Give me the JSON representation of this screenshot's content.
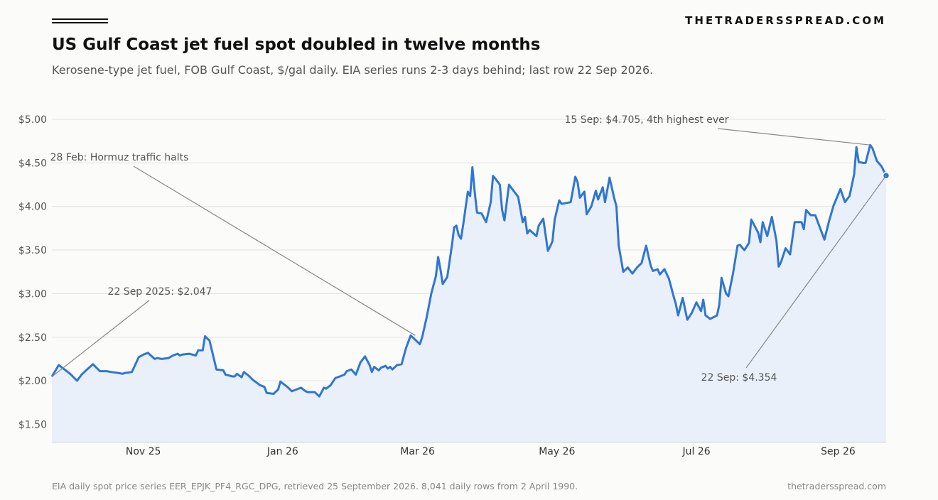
{
  "header": {
    "brand": "THETRADERSSPREAD.COM",
    "title": "US Gulf Coast jet fuel spot doubled in twelve months",
    "subtitle": "Kerosene-type jet fuel, FOB Gulf Coast, $/gal daily. EIA series runs 2-3 days behind; last row 22 Sep 2026."
  },
  "footer": {
    "source": "EIA daily spot price series EER_EPJK_PF4_RGC_DPG, retrieved 25 September 2026. 8,041 daily rows from 2 April 1990.",
    "site": "thetradersspread.com"
  },
  "colors": {
    "line": "#2f76d2",
    "fill": "#eaf0f9",
    "grid": "#e2e2e2",
    "leader": "#888888"
  },
  "chart_data": {
    "type": "area",
    "title": "US Gulf Coast jet fuel spot doubled in twelve months",
    "xlabel": "",
    "ylabel": "",
    "unit": "$/gal",
    "ylim": [
      1.3,
      5.0
    ],
    "xlim": [
      "2025-09-22",
      "2026-09-22"
    ],
    "grid": "horizontal",
    "legend": "none",
    "y_ticks": [
      {
        "value": 1.5,
        "label": "$1.50"
      },
      {
        "value": 2.0,
        "label": "$2.00"
      },
      {
        "value": 2.5,
        "label": "$2.50"
      },
      {
        "value": 3.0,
        "label": "$3.00"
      },
      {
        "value": 3.5,
        "label": "$3.50"
      },
      {
        "value": 4.0,
        "label": "$4.00"
      },
      {
        "value": 4.5,
        "label": "$4.50"
      },
      {
        "value": 5.0,
        "label": "$5.00"
      }
    ],
    "x_ticks": [
      {
        "date": "2025-11-01",
        "label": "Nov 25"
      },
      {
        "date": "2026-01-01",
        "label": "Jan 26"
      },
      {
        "date": "2026-03-01",
        "label": "Mar 26"
      },
      {
        "date": "2026-05-01",
        "label": "May 26"
      },
      {
        "date": "2026-07-01",
        "label": "Jul 26"
      },
      {
        "date": "2026-09-01",
        "label": "Sep 26"
      }
    ],
    "series": [
      {
        "x": [
          "2025-09-22",
          "2025-09-25",
          "2025-09-27",
          "2025-09-30",
          "2025-10-03",
          "2025-10-05",
          "2025-10-07",
          "2025-10-10",
          "2025-10-13",
          "2025-10-15",
          "2025-10-16",
          "2025-10-18",
          "2025-10-21",
          "2025-10-23",
          "2025-10-24",
          "2025-10-27",
          "2025-10-30",
          "2025-11-01",
          "2025-11-03",
          "2025-11-06",
          "2025-11-07",
          "2025-11-09",
          "2025-11-12",
          "2025-11-14",
          "2025-11-16",
          "2025-11-17",
          "2025-11-18",
          "2025-11-21",
          "2025-11-24",
          "2025-11-25",
          "2025-11-27",
          "2025-11-28",
          "2025-11-30",
          "2025-12-03",
          "2025-12-06",
          "2025-12-07",
          "2025-12-10",
          "2025-12-11",
          "2025-12-12",
          "2025-12-14",
          "2025-12-15",
          "2025-12-17",
          "2025-12-19",
          "2025-12-22",
          "2025-12-24",
          "2025-12-25",
          "2025-12-28",
          "2025-12-30",
          "2025-12-31",
          "2026-01-03",
          "2026-01-05",
          "2026-01-07",
          "2026-01-09",
          "2026-01-11",
          "2026-01-12",
          "2026-01-15",
          "2026-01-17",
          "2026-01-19",
          "2026-01-20",
          "2026-01-22",
          "2026-01-24",
          "2026-01-26",
          "2026-01-28",
          "2026-01-29",
          "2026-01-31",
          "2026-02-02",
          "2026-02-04",
          "2026-02-06",
          "2026-02-08",
          "2026-02-09",
          "2026-02-10",
          "2026-02-12",
          "2026-02-13",
          "2026-02-15",
          "2026-02-16",
          "2026-02-17",
          "2026-02-18",
          "2026-02-20",
          "2026-02-22",
          "2026-02-24",
          "2026-02-26",
          "2026-02-28",
          "2026-03-02",
          "2026-03-03",
          "2026-03-05",
          "2026-03-07",
          "2026-03-09",
          "2026-03-10",
          "2026-03-11",
          "2026-03-12",
          "2026-03-14",
          "2026-03-16",
          "2026-03-17",
          "2026-03-18",
          "2026-03-19",
          "2026-03-20",
          "2026-03-21",
          "2026-03-23",
          "2026-03-24",
          "2026-03-25",
          "2026-03-26",
          "2026-03-27",
          "2026-03-29",
          "2026-03-31",
          "2026-04-02",
          "2026-04-03",
          "2026-04-04",
          "2026-04-06",
          "2026-04-07",
          "2026-04-08",
          "2026-04-10",
          "2026-04-12",
          "2026-04-14",
          "2026-04-16",
          "2026-04-17",
          "2026-04-18",
          "2026-04-19",
          "2026-04-22",
          "2026-04-23",
          "2026-04-25",
          "2026-04-27",
          "2026-04-28",
          "2026-04-29",
          "2026-04-30",
          "2026-05-02",
          "2026-05-03",
          "2026-05-05",
          "2026-05-07",
          "2026-05-09",
          "2026-05-10",
          "2026-05-11",
          "2026-05-13",
          "2026-05-14",
          "2026-05-16",
          "2026-05-18",
          "2026-05-19",
          "2026-05-21",
          "2026-05-22",
          "2026-05-24",
          "2026-05-26",
          "2026-05-27",
          "2026-05-28",
          "2026-05-30",
          "2026-06-01",
          "2026-06-03",
          "2026-06-05",
          "2026-06-07",
          "2026-06-09",
          "2026-06-11",
          "2026-06-12",
          "2026-06-14",
          "2026-06-15",
          "2026-06-17",
          "2026-06-19",
          "2026-06-21",
          "2026-06-22",
          "2026-06-23",
          "2026-06-25",
          "2026-06-27",
          "2026-06-29",
          "2026-07-01",
          "2026-07-03",
          "2026-07-04",
          "2026-07-05",
          "2026-07-07",
          "2026-07-10",
          "2026-07-11",
          "2026-07-12",
          "2026-07-14",
          "2026-07-15",
          "2026-07-17",
          "2026-07-19",
          "2026-07-20",
          "2026-07-22",
          "2026-07-24",
          "2026-07-25",
          "2026-07-28",
          "2026-07-29",
          "2026-07-30",
          "2026-08-01",
          "2026-08-03",
          "2026-08-05",
          "2026-08-06",
          "2026-08-07",
          "2026-08-09",
          "2026-08-11",
          "2026-08-13",
          "2026-08-16",
          "2026-08-17",
          "2026-08-18",
          "2026-08-20",
          "2026-08-22",
          "2026-08-24",
          "2026-08-26",
          "2026-08-28",
          "2026-08-30",
          "2026-09-02",
          "2026-09-04",
          "2026-09-06",
          "2026-09-08",
          "2026-09-09",
          "2026-09-10",
          "2026-09-12",
          "2026-09-13",
          "2026-09-15",
          "2026-09-16",
          "2026-09-18",
          "2026-09-20",
          "2026-09-22"
        ],
        "y": [
          2.047,
          2.18,
          2.14,
          2.08,
          2.0,
          2.07,
          2.12,
          2.19,
          2.11,
          2.11,
          2.11,
          2.1,
          2.09,
          2.08,
          2.09,
          2.1,
          2.27,
          2.3,
          2.32,
          2.25,
          2.26,
          2.25,
          2.26,
          2.29,
          2.31,
          2.29,
          2.3,
          2.31,
          2.29,
          2.35,
          2.35,
          2.51,
          2.46,
          2.13,
          2.12,
          2.07,
          2.05,
          2.05,
          2.08,
          2.04,
          2.1,
          2.06,
          2.01,
          1.95,
          1.93,
          1.86,
          1.85,
          1.9,
          1.99,
          1.93,
          1.88,
          1.9,
          1.92,
          1.88,
          1.87,
          1.87,
          1.82,
          1.92,
          1.91,
          1.95,
          2.03,
          2.05,
          2.07,
          2.11,
          2.13,
          2.07,
          2.21,
          2.28,
          2.18,
          2.1,
          2.16,
          2.12,
          2.15,
          2.17,
          2.14,
          2.16,
          2.13,
          2.18,
          2.19,
          2.38,
          2.52,
          2.47,
          2.42,
          2.5,
          2.73,
          3.0,
          3.2,
          3.42,
          3.28,
          3.11,
          3.19,
          3.55,
          3.76,
          3.78,
          3.67,
          3.63,
          3.8,
          4.17,
          4.12,
          4.45,
          4.17,
          3.93,
          3.92,
          3.82,
          4.05,
          4.35,
          4.32,
          4.25,
          3.96,
          3.84,
          4.25,
          4.18,
          4.11,
          3.82,
          3.88,
          3.69,
          3.73,
          3.66,
          3.78,
          3.86,
          3.49,
          3.54,
          3.6,
          3.85,
          4.07,
          4.03,
          4.04,
          4.05,
          4.34,
          4.28,
          4.1,
          4.17,
          3.91,
          4.0,
          4.18,
          4.08,
          4.22,
          4.05,
          4.33,
          4.1,
          4.0,
          3.55,
          3.25,
          3.3,
          3.23,
          3.3,
          3.35,
          3.55,
          3.32,
          3.26,
          3.28,
          3.22,
          3.28,
          3.17,
          2.97,
          2.88,
          2.75,
          2.95,
          2.7,
          2.78,
          2.9,
          2.8,
          2.93,
          2.75,
          2.71,
          2.75,
          2.87,
          3.18,
          3.0,
          2.97,
          3.23,
          3.55,
          3.56,
          3.5,
          3.58,
          3.85,
          3.7,
          3.59,
          3.82,
          3.66,
          3.88,
          3.61,
          3.31,
          3.36,
          3.52,
          3.45,
          3.82,
          3.82,
          3.74,
          3.96,
          3.9,
          3.9,
          3.76,
          3.62,
          3.83,
          4.01,
          4.2,
          4.05,
          4.12,
          4.37,
          4.68,
          4.51,
          4.5,
          4.5,
          4.705,
          4.67,
          4.52,
          4.46,
          4.354
        ]
      }
    ],
    "annotations": [
      {
        "text": "22 Sep 2025: $2.047",
        "date": "2025-09-22",
        "value": 2.047
      },
      {
        "text": "28 Feb: Hormuz traffic halts",
        "date": "2026-02-28",
        "value": 2.52
      },
      {
        "text": "15 Sep: $4.705, 4th highest ever",
        "date": "2026-09-15",
        "value": 4.705
      },
      {
        "text": "22 Sep: $4.354",
        "date": "2026-09-22",
        "value": 4.354
      }
    ]
  }
}
